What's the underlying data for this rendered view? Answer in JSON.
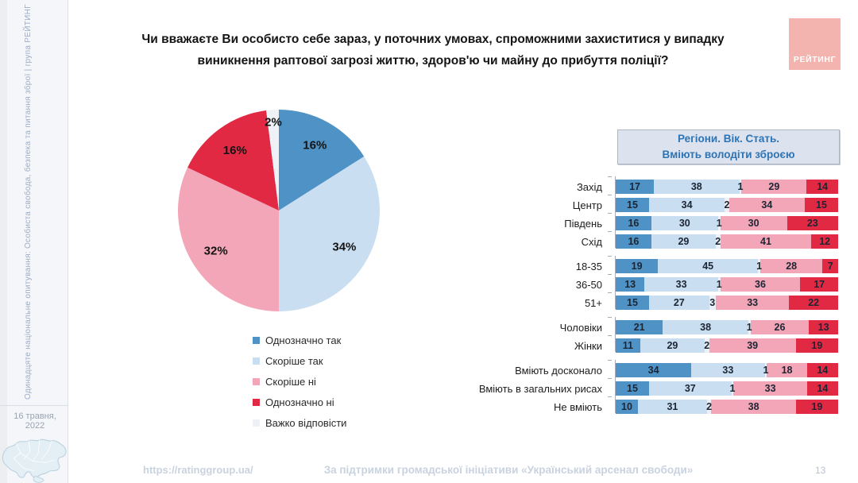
{
  "sidebar": {
    "vertical_text": "Одинадцяте національне опитування: Особиста свобода, безпека та питання зброї | група РЕЙТИНГ",
    "date": "16 травня, 2022"
  },
  "header": {
    "title_line1": "Чи вважаєте Ви особисто себе зараз, у поточних умовах, спроможними захиститися у випадку",
    "title_line2": "виникнення раптової загрозі життю, здоров'ю чи майну до прибуття поліції?",
    "logo_text": "РЕЙТИНГ"
  },
  "right_panel": {
    "box_title_line1": "Регіони. Вік. Стать.",
    "box_title_line2": "Вміють володіти зброєю"
  },
  "footer": {
    "url": "https://ratinggroup.ua/",
    "support": "За підтримки  громадської ініціативи «Український арсенал свободи»",
    "page": "13"
  },
  "colors": {
    "definitely_yes": "#4e92c6",
    "rather_yes": "#cadef1",
    "hard_to_say": "#eef2f7",
    "rather_no": "#f3a6b7",
    "definitely_no": "#e22944",
    "accent_text_blue": "#2e74b5",
    "logo_pink": "#f3b3ae"
  },
  "chart_data": [
    {
      "type": "pie",
      "labels": [
        "Однозначно так",
        "Скоріше так",
        "Скоріше ні",
        "Однозначно ні",
        "Важко відповісти"
      ],
      "values": [
        16,
        34,
        32,
        16,
        2
      ],
      "colors": [
        "#4e92c6",
        "#cadef1",
        "#f3a6b7",
        "#e22944",
        "#eef2f7"
      ],
      "start_angle_deg": 0,
      "direction": "clockwise",
      "legend_position": "bottom-left"
    },
    {
      "type": "bar",
      "subtype": "horizontal-stacked",
      "title": "Регіони. Вік. Стать. Вміють володіти зброєю",
      "xlim": [
        0,
        100
      ],
      "segment_order": [
        "Однозначно так",
        "Скоріше так",
        "Важко відповісти",
        "Скоріше ні",
        "Однозначно ні"
      ],
      "segment_colors": [
        "#4e92c6",
        "#cadef1",
        "#edf1f7",
        "#f3a6b7",
        "#e22944"
      ],
      "groups": [
        {
          "rows": [
            {
              "label": "Захід",
              "values": [
                17,
                38,
                1,
                29,
                14
              ]
            },
            {
              "label": "Центр",
              "values": [
                15,
                34,
                2,
                34,
                15
              ]
            },
            {
              "label": "Південь",
              "values": [
                16,
                30,
                1,
                30,
                23
              ]
            },
            {
              "label": "Схід",
              "values": [
                16,
                29,
                2,
                41,
                12
              ]
            }
          ]
        },
        {
          "rows": [
            {
              "label": "18-35",
              "values": [
                19,
                45,
                1,
                28,
                7
              ]
            },
            {
              "label": "36-50",
              "values": [
                13,
                33,
                1,
                36,
                17
              ]
            },
            {
              "label": "51+",
              "values": [
                15,
                27,
                3,
                33,
                22
              ]
            }
          ]
        },
        {
          "rows": [
            {
              "label": "Чоловіки",
              "values": [
                21,
                38,
                1,
                26,
                13
              ]
            },
            {
              "label": "Жінки",
              "values": [
                11,
                29,
                2,
                39,
                19
              ]
            }
          ]
        },
        {
          "rows": [
            {
              "label": "Вміють досконало",
              "values": [
                34,
                33,
                1,
                18,
                14
              ]
            },
            {
              "label": "Вміють в загальних рисах",
              "values": [
                15,
                37,
                1,
                33,
                14
              ]
            },
            {
              "label": "Не вміють",
              "values": [
                10,
                31,
                2,
                38,
                19
              ]
            }
          ]
        }
      ]
    }
  ]
}
